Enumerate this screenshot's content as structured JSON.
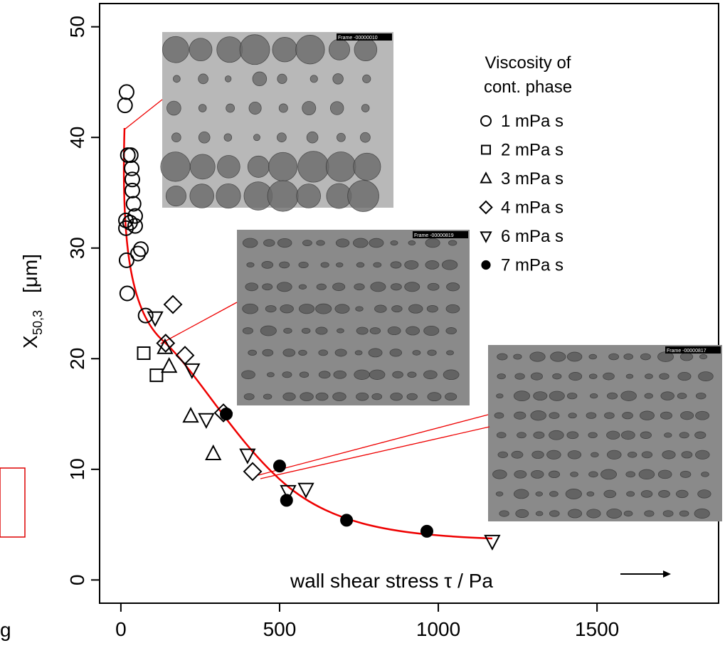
{
  "chart_data": {
    "type": "scatter",
    "ylabel": {
      "main": "X",
      "sub": "50,3",
      "unit": "[μm]"
    },
    "xlabel": "wall shear stress  τ / Pa",
    "legend_title": [
      "Viscosity of",
      "cont. phase"
    ],
    "legend_position": "upper right",
    "xlim": [
      -67,
      1883
    ],
    "ylim": [
      -2.1,
      52.1
    ],
    "xticks": [
      0,
      500,
      1000,
      1500
    ],
    "yticks": [
      0,
      10,
      20,
      30,
      40,
      50
    ],
    "series": [
      {
        "name": "1 mPa s",
        "marker": "circle",
        "color": "#000000",
        "x": [
          18,
          13,
          22,
          31,
          34,
          36,
          36,
          40,
          45,
          16,
          29,
          45,
          16,
          63,
          54,
          18,
          20,
          78
        ],
        "values": [
          44.1,
          42.9,
          38.4,
          38.4,
          37.2,
          36.2,
          35.2,
          34.0,
          32.9,
          32.5,
          32.3,
          32.0,
          31.8,
          29.9,
          29.5,
          28.9,
          25.9,
          23.9
        ]
      },
      {
        "name": "2 mPa s",
        "marker": "square",
        "color": "#000000",
        "x": [
          72,
          112
        ],
        "values": [
          20.5,
          18.5
        ]
      },
      {
        "name": "3 mPa s",
        "marker": "triangle",
        "color": "#000000",
        "x": [
          139,
          152,
          220,
          291
        ],
        "values": [
          21.0,
          19.3,
          14.8,
          11.4
        ]
      },
      {
        "name": "4 mPa s",
        "marker": "diamond",
        "color": "#000000",
        "x": [
          164,
          141,
          202,
          323,
          415
        ],
        "values": [
          24.9,
          21.4,
          20.3,
          15.1,
          9.8
        ]
      },
      {
        "name": "6 mPa s",
        "marker": "triangle-down",
        "color": "#000000",
        "x": [
          108,
          224,
          269,
          399,
          527,
          583,
          1170
        ],
        "values": [
          23.7,
          19.0,
          14.5,
          11.3,
          8.0,
          8.2,
          3.5
        ]
      },
      {
        "name": "7 mPa s",
        "marker": "filled-circle",
        "color": "#000000",
        "x": [
          332,
          500,
          522,
          711,
          964
        ],
        "values": [
          15.0,
          10.3,
          7.2,
          5.4,
          4.4
        ]
      }
    ],
    "insets": [
      {
        "frame_label": "Frame  -00000010"
      },
      {
        "frame_label": "Frame  -00000819"
      },
      {
        "frame_label": "Frame  -00000817"
      }
    ],
    "stray_text": "g"
  }
}
